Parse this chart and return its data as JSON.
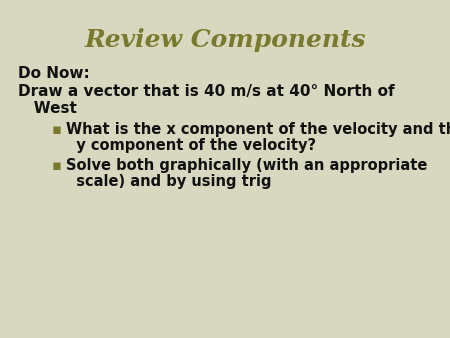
{
  "title": "Review Components",
  "title_color": "#7a7a2e",
  "title_fontsize": 18,
  "bg_color": "#d8d8c0",
  "line1": "Do Now:",
  "line2_part1": "Draw a vector that is 40 m/s at 40° North of",
  "line2_part2": "   West",
  "bullet1_line1": "What is the x component of the velocity and the",
  "bullet1_line2": "  y component of the velocity?",
  "bullet2_line1": "Solve both graphically (with an appropriate",
  "bullet2_line2": "  scale) and by using trig",
  "bullet_color": "#7a7a2e",
  "text_color": "#111111",
  "body_fontsize": 11,
  "bullet_fontsize": 10.5
}
